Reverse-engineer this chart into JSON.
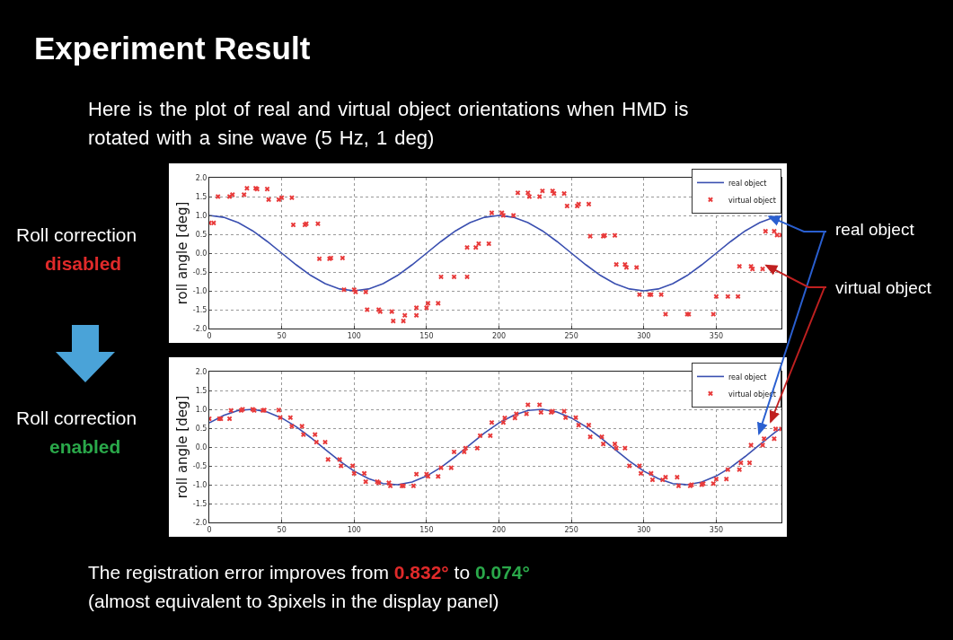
{
  "chart_data": [
    {
      "type": "line",
      "title": "Experiment Result",
      "subtitle": "Here is the plot of real and virtual object orientations when HMD is rotated with a sine wave   (5 Hz, 1 deg)",
      "ylabel": "roll angle [deg]",
      "xlim": [
        0,
        395
      ],
      "xticks": [
        0,
        50,
        100,
        150,
        200,
        250,
        300,
        350
      ],
      "ylim": [
        -2,
        2
      ],
      "yticks": [
        {
          "value": -2,
          "label": "-2.0"
        },
        {
          "value": -1.5,
          "label": "-1.5"
        },
        {
          "value": -1,
          "label": "-1.0"
        },
        {
          "value": -0.5,
          "label": "-0.5"
        },
        {
          "value": 0,
          "label": "0.0"
        },
        {
          "value": 0.5,
          "label": "0.5"
        },
        {
          "value": 1,
          "label": "1.0"
        },
        {
          "value": 1.5,
          "label": "1.5"
        },
        {
          "value": 2,
          "label": "2.0"
        }
      ],
      "grid": true,
      "legend": "top right",
      "series": [
        {
          "name": "real object",
          "type": "line",
          "color": "#3a4fb0",
          "line_style": "solid",
          "x": [
            0,
            10,
            20,
            30,
            40,
            50,
            60,
            70,
            80,
            90,
            100,
            110,
            120,
            130,
            140,
            150,
            160,
            170,
            180,
            190,
            200,
            210,
            220,
            230,
            240,
            250,
            260,
            270,
            280,
            290,
            300,
            310,
            320,
            330,
            340,
            350,
            360,
            370,
            380,
            390,
            395
          ],
          "values": [
            1,
            0.95,
            0.81,
            0.59,
            0.31,
            0,
            -0.31,
            -0.59,
            -0.81,
            -0.95,
            -1,
            -0.95,
            -0.81,
            -0.59,
            -0.31,
            0,
            0.31,
            0.59,
            0.81,
            0.95,
            1,
            0.95,
            0.81,
            0.59,
            0.31,
            0,
            -0.31,
            -0.59,
            -0.81,
            -0.95,
            -1,
            -0.95,
            -0.81,
            -0.59,
            -0.31,
            0,
            0.31,
            0.59,
            0.81,
            0.95,
            0.98
          ]
        },
        {
          "name": "virtual object",
          "type": "scatter",
          "marker": "cross",
          "color": "#e83a3a",
          "x": [
            0,
            3,
            6,
            14,
            16,
            24,
            26,
            32,
            33,
            40,
            41,
            48,
            50,
            57,
            58,
            66,
            67,
            75,
            76,
            83,
            84,
            92,
            93,
            100,
            101,
            108,
            109,
            117,
            118,
            126,
            127,
            134,
            135,
            143,
            143,
            150,
            151,
            158,
            160,
            169,
            178,
            178,
            184,
            186,
            193,
            195,
            202,
            203,
            210,
            213,
            220,
            221,
            228,
            230,
            237,
            238,
            245,
            247,
            254,
            255,
            262,
            263,
            272,
            273,
            280,
            281,
            287,
            288,
            295,
            297,
            304,
            305,
            312,
            315,
            330,
            331,
            348,
            350,
            358,
            365,
            366,
            374,
            375,
            382,
            384,
            390,
            392,
            395
          ],
          "values": [
            0.8,
            0.8,
            1.5,
            1.5,
            1.55,
            1.55,
            1.72,
            1.72,
            1.7,
            1.7,
            1.42,
            1.42,
            1.47,
            1.47,
            0.75,
            0.75,
            0.78,
            0.78,
            -0.15,
            -0.15,
            -0.13,
            -0.13,
            -0.97,
            -0.97,
            -1.03,
            -1.03,
            -1.5,
            -1.5,
            -1.55,
            -1.55,
            -1.8,
            -1.8,
            -1.65,
            -1.65,
            -1.45,
            -1.45,
            -1.33,
            -1.33,
            -0.63,
            -0.63,
            -0.63,
            0.15,
            0.15,
            0.25,
            0.25,
            1.07,
            1.07,
            1,
            1,
            1.6,
            1.6,
            1.5,
            1.5,
            1.65,
            1.65,
            1.58,
            1.58,
            1.25,
            1.25,
            1.3,
            1.3,
            0.45,
            0.45,
            0.47,
            0.47,
            -0.3,
            -0.3,
            -0.38,
            -0.38,
            -1.1,
            -1.1,
            -1.1,
            -1.1,
            -1.62,
            -1.62,
            -1.62,
            -1.62,
            -1.15,
            -1.15,
            -1.15,
            -0.35,
            -0.35,
            -0.42,
            -0.42,
            0.58,
            0.58,
            0.48,
            0.48
          ]
        }
      ],
      "annotations": [
        "Roll correction",
        "disabled",
        {
          "text": "real object",
          "x": 384,
          "y": 0.9
        },
        {
          "text": "virtual object",
          "x": 382,
          "y": -0.42
        }
      ]
    },
    {
      "type": "line",
      "ylabel": "roll angle [deg]",
      "xlim": [
        0,
        395
      ],
      "xticks": [
        0,
        50,
        100,
        150,
        200,
        250,
        300,
        350
      ],
      "ylim": [
        -2,
        2
      ],
      "yticks": [
        {
          "value": -2,
          "label": "-2.0"
        },
        {
          "value": -1.5,
          "label": "-1.5"
        },
        {
          "value": -1,
          "label": "-1.0"
        },
        {
          "value": -0.5,
          "label": "-0.5"
        },
        {
          "value": 0,
          "label": "0.0"
        },
        {
          "value": 0.5,
          "label": "0.5"
        },
        {
          "value": 1,
          "label": "1.0"
        },
        {
          "value": 1.5,
          "label": "1.5"
        },
        {
          "value": 2,
          "label": "2.0"
        }
      ],
      "grid": true,
      "legend": "top right",
      "series": [
        {
          "name": "real object",
          "type": "line",
          "color": "#3a4fb0",
          "line_style": "solid",
          "x": [
            0,
            10,
            20,
            30,
            40,
            50,
            60,
            70,
            80,
            90,
            100,
            110,
            120,
            130,
            140,
            150,
            160,
            170,
            180,
            190,
            200,
            210,
            220,
            230,
            240,
            250,
            260,
            270,
            280,
            290,
            300,
            310,
            320,
            330,
            340,
            350,
            360,
            370,
            380,
            390,
            395
          ],
          "values": [
            0.64,
            0.84,
            0.97,
            1,
            0.93,
            0.77,
            0.54,
            0.25,
            -0.06,
            -0.37,
            -0.64,
            -0.84,
            -0.97,
            -1,
            -0.93,
            -0.77,
            -0.54,
            -0.25,
            0.06,
            0.37,
            0.64,
            0.84,
            0.97,
            1,
            0.93,
            0.77,
            0.54,
            0.25,
            -0.06,
            -0.37,
            -0.64,
            -0.84,
            -0.97,
            -1,
            -0.93,
            -0.77,
            -0.54,
            -0.25,
            0.06,
            0.37,
            0.51
          ]
        },
        {
          "name": "virtual object",
          "type": "scatter",
          "marker": "cross",
          "color": "#e83a3a",
          "x": [
            0,
            7,
            8,
            14,
            15,
            22,
            23,
            30,
            31,
            37,
            38,
            48,
            49,
            56,
            57,
            64,
            65,
            73,
            74,
            80,
            82,
            90,
            91,
            99,
            100,
            107,
            108,
            116,
            117,
            124,
            125,
            133,
            134,
            141,
            143,
            150,
            151,
            158,
            160,
            167,
            169,
            176,
            177,
            185,
            187,
            194,
            195,
            203,
            204,
            211,
            212,
            219,
            220,
            228,
            229,
            236,
            237,
            245,
            246,
            253,
            255,
            262,
            263,
            271,
            272,
            280,
            281,
            287,
            290,
            297,
            298,
            305,
            306,
            313,
            315,
            323,
            324,
            332,
            333,
            340,
            341,
            348,
            350,
            357,
            358,
            366,
            367,
            373,
            374,
            382,
            383,
            390,
            391,
            395
          ],
          "values": [
            0.75,
            0.75,
            0.75,
            0.75,
            0.97,
            0.97,
            1,
            1,
            0.97,
            0.97,
            0.98,
            0.98,
            0.78,
            0.78,
            0.55,
            0.55,
            0.33,
            0.33,
            0.13,
            0.13,
            -0.33,
            -0.33,
            -0.5,
            -0.5,
            -0.7,
            -0.7,
            -0.92,
            -0.92,
            -0.95,
            -0.95,
            -1.03,
            -1.03,
            -1.03,
            -1.03,
            -0.72,
            -0.72,
            -0.78,
            -0.78,
            -0.55,
            -0.55,
            -0.13,
            -0.13,
            -0.03,
            -0.03,
            0.3,
            0.3,
            0.65,
            0.65,
            0.77,
            0.77,
            0.88,
            0.88,
            1.12,
            1.12,
            0.92,
            0.92,
            0.95,
            0.95,
            0.78,
            0.78,
            0.58,
            0.58,
            0.27,
            0.27,
            0.08,
            0.08,
            -0.03,
            -0.03,
            -0.5,
            -0.5,
            -0.7,
            -0.7,
            -0.87,
            -0.87,
            -0.8,
            -0.8,
            -1.03,
            -1.03,
            -1,
            -1,
            -0.97,
            -0.97,
            -0.85,
            -0.85,
            -0.6,
            -0.6,
            -0.42,
            -0.42,
            0.05,
            0.05,
            0.22,
            0.22,
            0.48,
            0.48
          ]
        }
      ],
      "annotations": [
        "Roll correction",
        "enabled",
        "The registration error improves from",
        "0.832°",
        "to",
        "0.074°",
        "(almost equivalent to 3pixels in the display panel)"
      ]
    }
  ]
}
